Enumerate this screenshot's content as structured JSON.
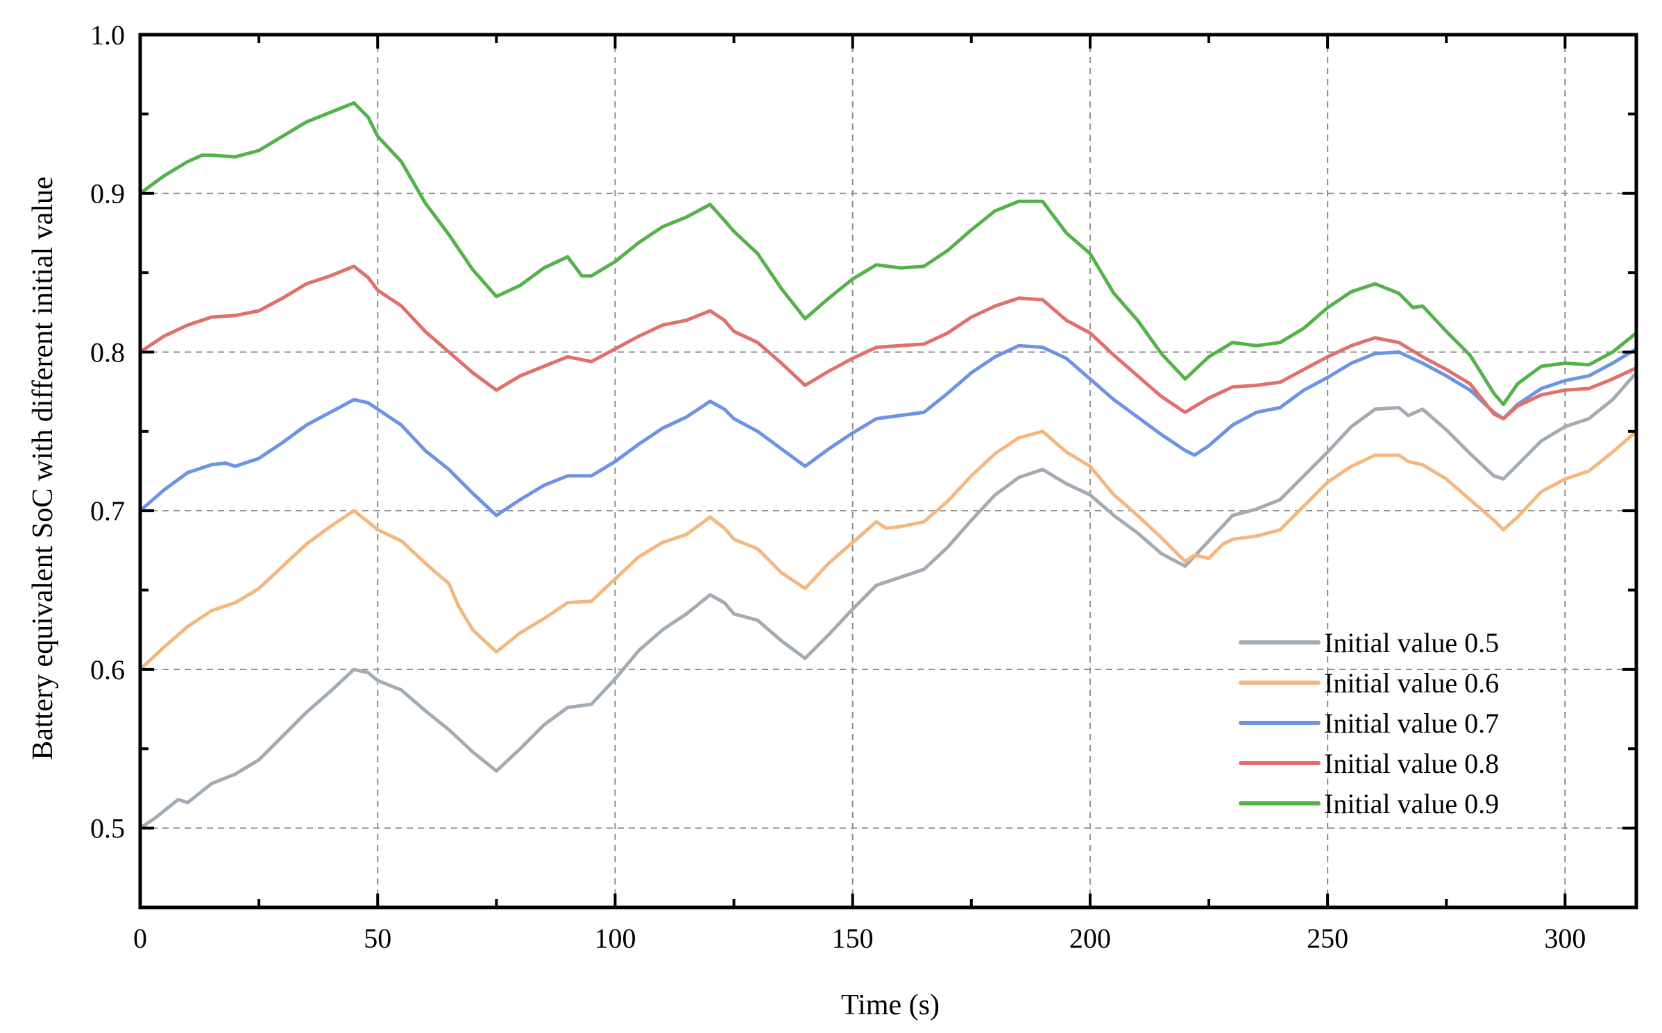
{
  "chart_data": {
    "type": "line",
    "title": "",
    "xlabel": "Time (s)",
    "ylabel": "Battery equivalent SoC with different initial value",
    "xlim": [
      0,
      315
    ],
    "ylim": [
      0.45,
      1.0
    ],
    "xticks": [
      0,
      50,
      100,
      150,
      200,
      250,
      300
    ],
    "xtick_labels": [
      "0",
      "50",
      "100",
      "150",
      "200",
      "250",
      "300"
    ],
    "yticks": [
      0.5,
      0.6,
      0.7,
      0.8,
      0.9,
      1.0
    ],
    "ytick_labels": [
      "0.5",
      "0.6",
      "0.7",
      "0.8",
      "0.9",
      "1.0"
    ],
    "grid": true,
    "legend_position": "bottom-right",
    "series": [
      {
        "name": "Initial value 0.5",
        "color": "#a3abb3",
        "x": [
          0,
          3,
          8,
          10,
          15,
          20,
          25,
          30,
          35,
          40,
          45,
          48,
          50,
          55,
          60,
          65,
          70,
          75,
          80,
          85,
          90,
          95,
          100,
          105,
          110,
          115,
          120,
          123,
          125,
          130,
          135,
          140,
          145,
          150,
          155,
          160,
          165,
          170,
          175,
          180,
          185,
          190,
          195,
          200,
          205,
          210,
          215,
          220,
          225,
          230,
          235,
          240,
          245,
          250,
          255,
          260,
          265,
          267,
          270,
          275,
          280,
          285,
          287,
          290,
          295,
          300,
          305,
          310,
          315
        ],
        "y": [
          0.5,
          0.506,
          0.518,
          0.516,
          0.528,
          0.534,
          0.543,
          0.558,
          0.573,
          0.586,
          0.6,
          0.598,
          0.593,
          0.587,
          0.574,
          0.562,
          0.548,
          0.536,
          0.55,
          0.565,
          0.576,
          0.578,
          0.594,
          0.612,
          0.625,
          0.635,
          0.647,
          0.642,
          0.635,
          0.631,
          0.618,
          0.607,
          0.622,
          0.638,
          0.653,
          0.658,
          0.663,
          0.677,
          0.694,
          0.71,
          0.721,
          0.726,
          0.717,
          0.71,
          0.697,
          0.686,
          0.673,
          0.665,
          0.681,
          0.697,
          0.701,
          0.707,
          0.722,
          0.737,
          0.753,
          0.764,
          0.765,
          0.76,
          0.764,
          0.751,
          0.736,
          0.722,
          0.72,
          0.729,
          0.744,
          0.753,
          0.758,
          0.77,
          0.787
        ]
      },
      {
        "name": "Initial value 0.6",
        "color": "#f5b77f",
        "x": [
          0,
          5,
          10,
          15,
          20,
          25,
          30,
          35,
          40,
          45,
          48,
          50,
          55,
          60,
          65,
          67,
          70,
          75,
          80,
          85,
          90,
          95,
          100,
          105,
          110,
          115,
          120,
          123,
          125,
          130,
          135,
          140,
          145,
          150,
          155,
          157,
          160,
          165,
          170,
          175,
          180,
          185,
          190,
          195,
          200,
          205,
          210,
          215,
          220,
          222,
          225,
          228,
          230,
          235,
          240,
          245,
          250,
          255,
          260,
          265,
          267,
          270,
          275,
          280,
          285,
          287,
          290,
          295,
          300,
          305,
          310,
          315
        ],
        "y": [
          0.6,
          0.614,
          0.627,
          0.637,
          0.642,
          0.651,
          0.665,
          0.679,
          0.69,
          0.7,
          0.693,
          0.688,
          0.681,
          0.667,
          0.654,
          0.64,
          0.625,
          0.611,
          0.623,
          0.632,
          0.642,
          0.643,
          0.657,
          0.671,
          0.68,
          0.685,
          0.696,
          0.689,
          0.682,
          0.676,
          0.661,
          0.651,
          0.667,
          0.68,
          0.693,
          0.689,
          0.69,
          0.693,
          0.706,
          0.722,
          0.736,
          0.746,
          0.75,
          0.737,
          0.728,
          0.71,
          0.697,
          0.683,
          0.668,
          0.672,
          0.67,
          0.679,
          0.682,
          0.684,
          0.688,
          0.703,
          0.718,
          0.728,
          0.735,
          0.735,
          0.731,
          0.729,
          0.72,
          0.707,
          0.694,
          0.688,
          0.696,
          0.712,
          0.72,
          0.725,
          0.737,
          0.75
        ]
      },
      {
        "name": "Initial value 0.7",
        "color": "#6d93e5",
        "x": [
          0,
          5,
          10,
          15,
          18,
          20,
          25,
          30,
          35,
          40,
          45,
          48,
          50,
          55,
          60,
          65,
          70,
          75,
          80,
          85,
          90,
          95,
          100,
          105,
          110,
          115,
          120,
          123,
          125,
          130,
          135,
          140,
          145,
          150,
          155,
          160,
          165,
          170,
          175,
          180,
          185,
          190,
          195,
          200,
          205,
          210,
          215,
          220,
          222,
          225,
          230,
          235,
          240,
          245,
          250,
          255,
          260,
          265,
          270,
          275,
          280,
          285,
          287,
          290,
          295,
          300,
          305,
          310,
          315
        ],
        "y": [
          0.7,
          0.713,
          0.724,
          0.729,
          0.73,
          0.728,
          0.733,
          0.743,
          0.754,
          0.762,
          0.77,
          0.768,
          0.764,
          0.754,
          0.738,
          0.726,
          0.711,
          0.697,
          0.707,
          0.716,
          0.722,
          0.722,
          0.731,
          0.742,
          0.752,
          0.759,
          0.769,
          0.764,
          0.758,
          0.75,
          0.739,
          0.728,
          0.739,
          0.749,
          0.758,
          0.76,
          0.762,
          0.774,
          0.787,
          0.797,
          0.804,
          0.803,
          0.796,
          0.783,
          0.77,
          0.759,
          0.748,
          0.738,
          0.735,
          0.741,
          0.754,
          0.762,
          0.765,
          0.776,
          0.784,
          0.793,
          0.799,
          0.8,
          0.793,
          0.785,
          0.776,
          0.762,
          0.758,
          0.767,
          0.777,
          0.782,
          0.785,
          0.793,
          0.802
        ]
      },
      {
        "name": "Initial value 0.8",
        "color": "#e0706a",
        "x": [
          0,
          5,
          10,
          15,
          20,
          25,
          30,
          35,
          40,
          45,
          48,
          50,
          55,
          60,
          65,
          70,
          75,
          80,
          85,
          90,
          95,
          100,
          105,
          110,
          115,
          120,
          123,
          125,
          130,
          135,
          140,
          145,
          150,
          155,
          160,
          165,
          170,
          175,
          180,
          185,
          190,
          195,
          200,
          205,
          210,
          215,
          220,
          225,
          230,
          235,
          240,
          245,
          250,
          255,
          260,
          265,
          270,
          275,
          280,
          285,
          287,
          290,
          295,
          300,
          305,
          310,
          315
        ],
        "y": [
          0.8,
          0.81,
          0.817,
          0.822,
          0.823,
          0.826,
          0.834,
          0.843,
          0.848,
          0.854,
          0.847,
          0.839,
          0.829,
          0.813,
          0.8,
          0.787,
          0.776,
          0.785,
          0.791,
          0.797,
          0.794,
          0.802,
          0.81,
          0.817,
          0.82,
          0.826,
          0.82,
          0.813,
          0.806,
          0.793,
          0.779,
          0.788,
          0.796,
          0.803,
          0.804,
          0.805,
          0.812,
          0.822,
          0.829,
          0.834,
          0.833,
          0.82,
          0.812,
          0.798,
          0.785,
          0.772,
          0.762,
          0.771,
          0.778,
          0.779,
          0.781,
          0.789,
          0.797,
          0.804,
          0.809,
          0.806,
          0.797,
          0.789,
          0.78,
          0.761,
          0.758,
          0.766,
          0.773,
          0.776,
          0.777,
          0.783,
          0.79
        ]
      },
      {
        "name": "Initial value 0.9",
        "color": "#55b24b",
        "x": [
          0,
          5,
          10,
          13,
          15,
          20,
          25,
          30,
          35,
          40,
          45,
          48,
          50,
          55,
          60,
          65,
          70,
          75,
          80,
          85,
          90,
          93,
          95,
          100,
          105,
          110,
          115,
          120,
          123,
          125,
          130,
          135,
          140,
          145,
          150,
          155,
          160,
          165,
          170,
          175,
          180,
          185,
          190,
          195,
          200,
          205,
          210,
          215,
          220,
          225,
          230,
          235,
          240,
          245,
          250,
          255,
          260,
          265,
          268,
          270,
          275,
          280,
          285,
          287,
          290,
          295,
          300,
          305,
          310,
          315
        ],
        "y": [
          0.9,
          0.911,
          0.92,
          0.924,
          0.924,
          0.923,
          0.927,
          0.936,
          0.945,
          0.951,
          0.957,
          0.948,
          0.936,
          0.92,
          0.894,
          0.874,
          0.852,
          0.835,
          0.842,
          0.853,
          0.86,
          0.848,
          0.848,
          0.857,
          0.869,
          0.879,
          0.885,
          0.893,
          0.883,
          0.876,
          0.862,
          0.84,
          0.821,
          0.834,
          0.846,
          0.855,
          0.853,
          0.854,
          0.864,
          0.877,
          0.889,
          0.895,
          0.895,
          0.875,
          0.862,
          0.837,
          0.82,
          0.799,
          0.783,
          0.797,
          0.806,
          0.804,
          0.806,
          0.815,
          0.828,
          0.838,
          0.843,
          0.837,
          0.828,
          0.829,
          0.813,
          0.798,
          0.774,
          0.767,
          0.78,
          0.791,
          0.793,
          0.792,
          0.8,
          0.812
        ]
      }
    ]
  }
}
